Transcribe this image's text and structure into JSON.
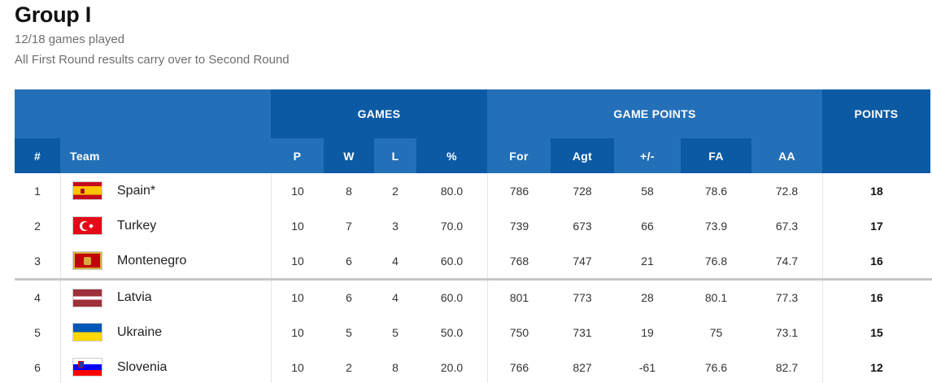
{
  "header": {
    "title": "Group I",
    "games_played": "12/18 games played",
    "note": "All First Round results carry over to Second Round"
  },
  "table": {
    "group_headers": {
      "games": "GAMES",
      "game_points": "GAME POINTS",
      "points": "POINTS"
    },
    "columns": {
      "rank": "#",
      "team": "Team",
      "p": "P",
      "w": "W",
      "l": "L",
      "pct": "%",
      "for": "For",
      "agt": "Agt",
      "diff": "+/-",
      "fa": "FA",
      "aa": "AA"
    },
    "rows": [
      {
        "rank": "1",
        "team": "Spain*",
        "flag": "spain-flag-icon",
        "p": "10",
        "w": "8",
        "l": "2",
        "pct": "80.0",
        "for": "786",
        "agt": "728",
        "diff": "58",
        "fa": "78.6",
        "aa": "72.8",
        "pts": "18"
      },
      {
        "rank": "2",
        "team": "Turkey",
        "flag": "turkey-flag-icon",
        "p": "10",
        "w": "7",
        "l": "3",
        "pct": "70.0",
        "for": "739",
        "agt": "673",
        "diff": "66",
        "fa": "73.9",
        "aa": "67.3",
        "pts": "17"
      },
      {
        "rank": "3",
        "team": "Montenegro",
        "flag": "montenegro-flag-icon",
        "p": "10",
        "w": "6",
        "l": "4",
        "pct": "60.0",
        "for": "768",
        "agt": "747",
        "diff": "21",
        "fa": "76.8",
        "aa": "74.7",
        "pts": "16"
      },
      {
        "rank": "4",
        "team": "Latvia",
        "flag": "latvia-flag-icon",
        "p": "10",
        "w": "6",
        "l": "4",
        "pct": "60.0",
        "for": "801",
        "agt": "773",
        "diff": "28",
        "fa": "80.1",
        "aa": "77.3",
        "pts": "16"
      },
      {
        "rank": "5",
        "team": "Ukraine",
        "flag": "ukraine-flag-icon",
        "p": "10",
        "w": "5",
        "l": "5",
        "pct": "50.0",
        "for": "750",
        "agt": "731",
        "diff": "19",
        "fa": "75",
        "aa": "73.1",
        "pts": "15"
      },
      {
        "rank": "6",
        "team": "Slovenia",
        "flag": "slovenia-flag-icon",
        "p": "10",
        "w": "2",
        "l": "8",
        "pct": "20.0",
        "for": "766",
        "agt": "827",
        "diff": "-61",
        "fa": "76.6",
        "aa": "82.7",
        "pts": "12"
      }
    ]
  },
  "colors": {
    "header_dark": "#0b5aa3",
    "header_light": "#2470b8"
  }
}
